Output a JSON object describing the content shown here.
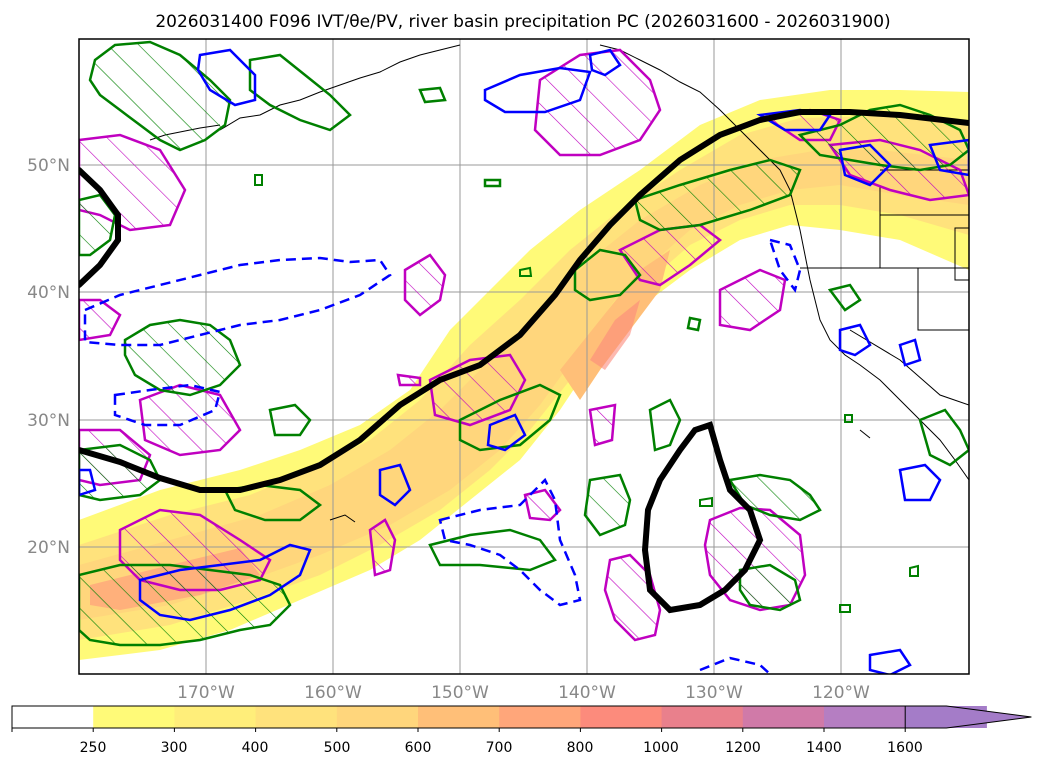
{
  "map": {
    "title": "2026031400 F096 IVT/θe/PV, river basin precipitation PC (2026031600 - 2026031900)",
    "lat_labels": [
      "20°N",
      "30°N",
      "40°N",
      "50°N"
    ],
    "lon_labels": [
      "170°W",
      "160°W",
      "150°W",
      "140°W",
      "130°W",
      "120°W"
    ],
    "extent": {
      "lon": [
        -180,
        -110
      ],
      "lat": [
        10,
        60
      ]
    },
    "axis_label_color": "#888888"
  },
  "colorbar": {
    "tick_labels": [
      "250",
      "300",
      "400",
      "500",
      "600",
      "700",
      "800",
      "1000",
      "1200",
      "1400",
      "1600"
    ],
    "colors": [
      "#ffffff",
      "#fffa78",
      "#ffee7a",
      "#ffe27c",
      "#ffd67c",
      "#ffbf78",
      "#ffa67a",
      "#fc8b7c",
      "#e9808c",
      "#d07aa8",
      "#b57ec2",
      "#a47cc8"
    ]
  },
  "legend_colors": {
    "pv_contour": "#c000c0",
    "theta_e_contour": "#008000",
    "negative_contour": "#0000ff",
    "main_contour": "#000000",
    "coast": "#000000"
  }
}
